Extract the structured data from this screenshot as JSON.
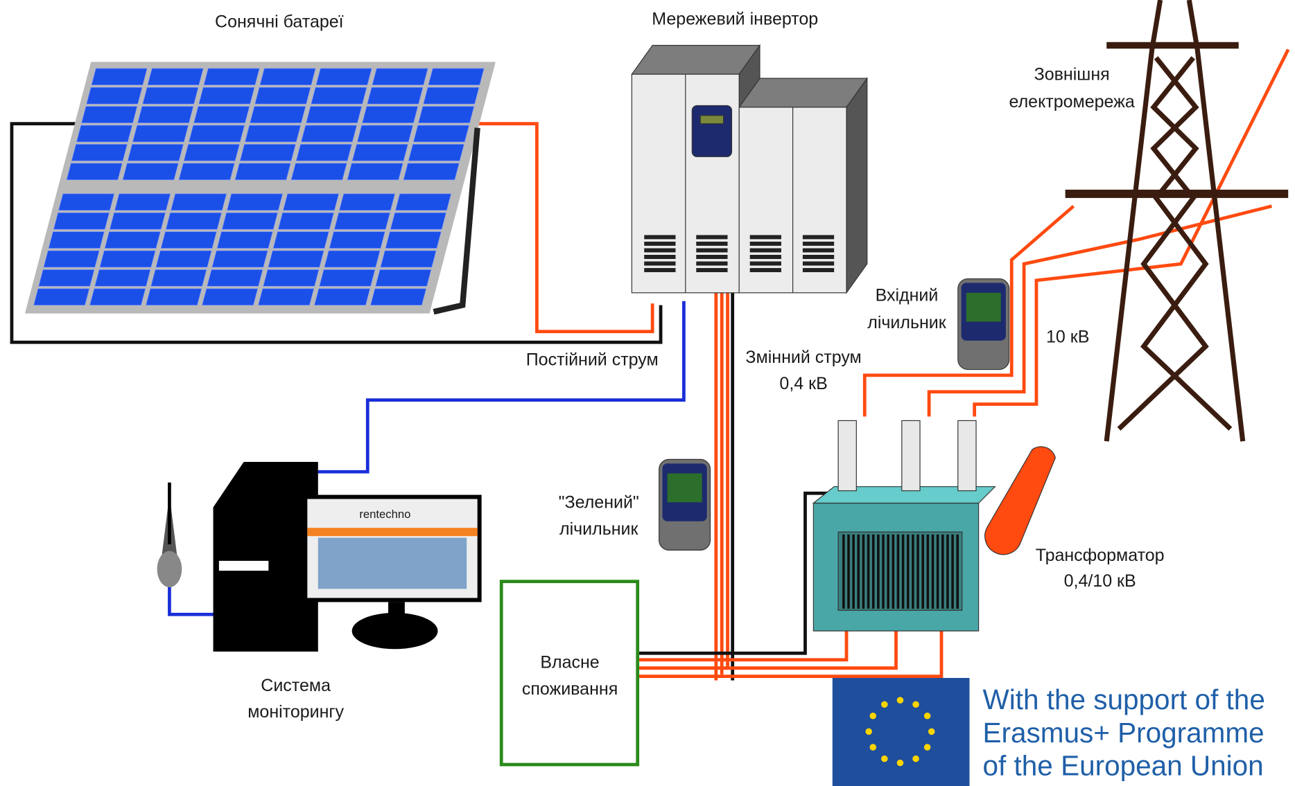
{
  "labels": {
    "solar": "Сонячні батареї",
    "inverter": "Мережевий інвертор",
    "grid": [
      "Зовнішня",
      "електромережа"
    ],
    "input_meter": [
      "Вхідний",
      "лічильник"
    ],
    "hv": "10 кВ",
    "dc": "Постійний струм",
    "ac": [
      "Змінний струм",
      "0,4 кВ"
    ],
    "green_meter": [
      "\"Зелений\"",
      "лічильник"
    ],
    "transformer": [
      "Трансформатор",
      "0,4/10 кВ"
    ],
    "own_use": [
      "Власне",
      "споживання"
    ],
    "monitoring": [
      "Система",
      "моніторингу"
    ],
    "screen_brand": "rentechno"
  },
  "eu": {
    "lines": [
      "With the support of the",
      "Erasmus+ Programme",
      "of the European Union"
    ]
  }
}
